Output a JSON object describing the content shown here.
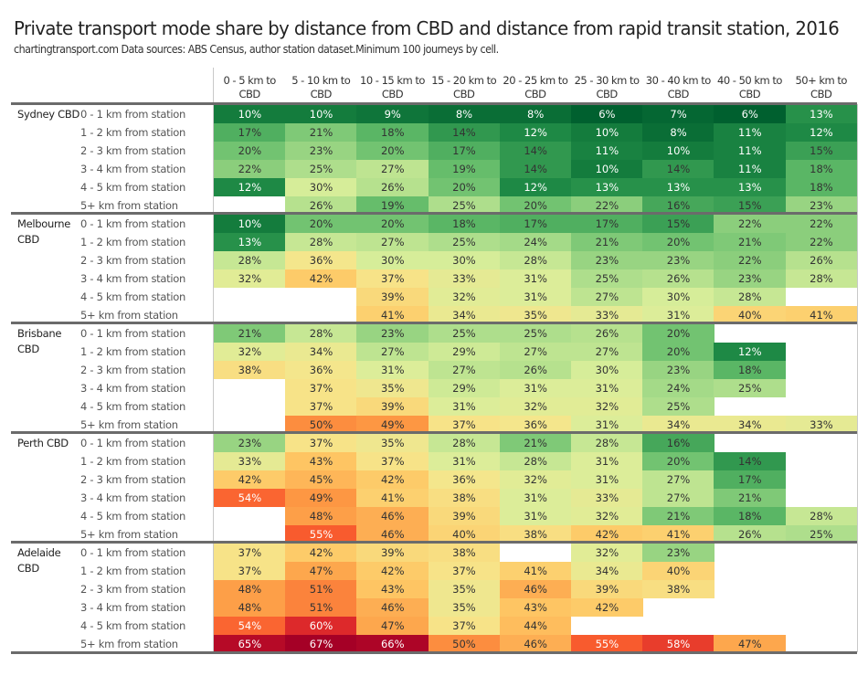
{
  "title": "Private transport mode share by distance from CBD and distance from rapid transit station, 2016",
  "subtitle": "chartingtransport.com  Data sources: ABS Census, author station dataset.Minimum 100 journeys by cell.",
  "chart_data": {
    "type": "heatmap",
    "title": "Private transport mode share by distance from CBD and distance from rapid transit station, 2016",
    "subtitle": "chartingtransport.com  Data sources: ABS Census, author station dataset.Minimum 100 journeys by cell.",
    "value_unit": "%",
    "color_scale": [
      "#00602f",
      "#1e8a45",
      "#5cb866",
      "#a8dc8a",
      "#d9ee9a",
      "#f6e58b",
      "#fec865",
      "#fd9a44",
      "#f95d2e",
      "#d8202a",
      "#a50026"
    ],
    "color_range": [
      6,
      67
    ],
    "columns": [
      "0 - 5 km to CBD",
      "5 - 10 km to CBD",
      "10 - 15 km to CBD",
      "15 - 20 km to CBD",
      "20 - 25 km to CBD",
      "25 - 30 km to CBD",
      "30 - 40 km to CBD",
      "40 - 50 km to CBD",
      "50+ km to CBD"
    ],
    "row_labels": [
      "0 - 1 km from station",
      "1 - 2 km from station",
      "2 - 3 km from station",
      "3 - 4 km from station",
      "4 - 5 km from station",
      "5+ km from station"
    ],
    "groups": [
      {
        "name": "Sydney CBD",
        "rows": [
          [
            10,
            10,
            9,
            8,
            8,
            6,
            7,
            6,
            13
          ],
          [
            17,
            21,
            18,
            14,
            12,
            10,
            8,
            11,
            12
          ],
          [
            20,
            23,
            20,
            17,
            14,
            11,
            10,
            11,
            15
          ],
          [
            22,
            25,
            27,
            19,
            14,
            10,
            14,
            11,
            18
          ],
          [
            12,
            30,
            26,
            20,
            12,
            13,
            13,
            13,
            18
          ],
          [
            null,
            26,
            19,
            25,
            20,
            22,
            16,
            15,
            23
          ]
        ]
      },
      {
        "name": "Melbourne CBD",
        "rows": [
          [
            10,
            20,
            20,
            18,
            17,
            17,
            15,
            22,
            22
          ],
          [
            13,
            28,
            27,
            25,
            24,
            21,
            20,
            21,
            22
          ],
          [
            28,
            36,
            30,
            30,
            28,
            23,
            23,
            22,
            26
          ],
          [
            32,
            42,
            37,
            33,
            31,
            25,
            26,
            23,
            28
          ],
          [
            null,
            null,
            39,
            32,
            31,
            27,
            30,
            28,
            null
          ],
          [
            null,
            null,
            41,
            34,
            35,
            33,
            31,
            40,
            41
          ]
        ]
      },
      {
        "name": "Brisbane CBD",
        "rows": [
          [
            21,
            28,
            23,
            25,
            25,
            26,
            20,
            null,
            null
          ],
          [
            32,
            34,
            27,
            29,
            27,
            27,
            20,
            12,
            null
          ],
          [
            38,
            36,
            31,
            27,
            26,
            30,
            23,
            18,
            null
          ],
          [
            null,
            37,
            35,
            29,
            31,
            31,
            24,
            25,
            null
          ],
          [
            null,
            37,
            39,
            31,
            32,
            32,
            25,
            null,
            null
          ],
          [
            null,
            50,
            49,
            37,
            36,
            31,
            34,
            34,
            33
          ]
        ]
      },
      {
        "name": "Perth CBD",
        "rows": [
          [
            23,
            37,
            35,
            28,
            21,
            28,
            16,
            null,
            null
          ],
          [
            33,
            43,
            37,
            31,
            28,
            31,
            20,
            14,
            null
          ],
          [
            42,
            45,
            42,
            36,
            32,
            31,
            27,
            17,
            null
          ],
          [
            54,
            49,
            41,
            38,
            31,
            33,
            27,
            21,
            null
          ],
          [
            null,
            48,
            46,
            39,
            31,
            32,
            21,
            18,
            28
          ],
          [
            null,
            55,
            46,
            40,
            38,
            42,
            41,
            26,
            25
          ]
        ]
      },
      {
        "name": "Adelaide CBD",
        "rows": [
          [
            37,
            42,
            39,
            38,
            null,
            32,
            23,
            null,
            null
          ],
          [
            37,
            47,
            42,
            37,
            41,
            34,
            40,
            null,
            null
          ],
          [
            48,
            51,
            43,
            35,
            46,
            39,
            38,
            null,
            null
          ],
          [
            48,
            51,
            46,
            35,
            43,
            42,
            null,
            null,
            null
          ],
          [
            54,
            60,
            47,
            37,
            44,
            null,
            null,
            null,
            null
          ],
          [
            65,
            67,
            66,
            50,
            46,
            55,
            58,
            47,
            null
          ]
        ]
      }
    ]
  }
}
